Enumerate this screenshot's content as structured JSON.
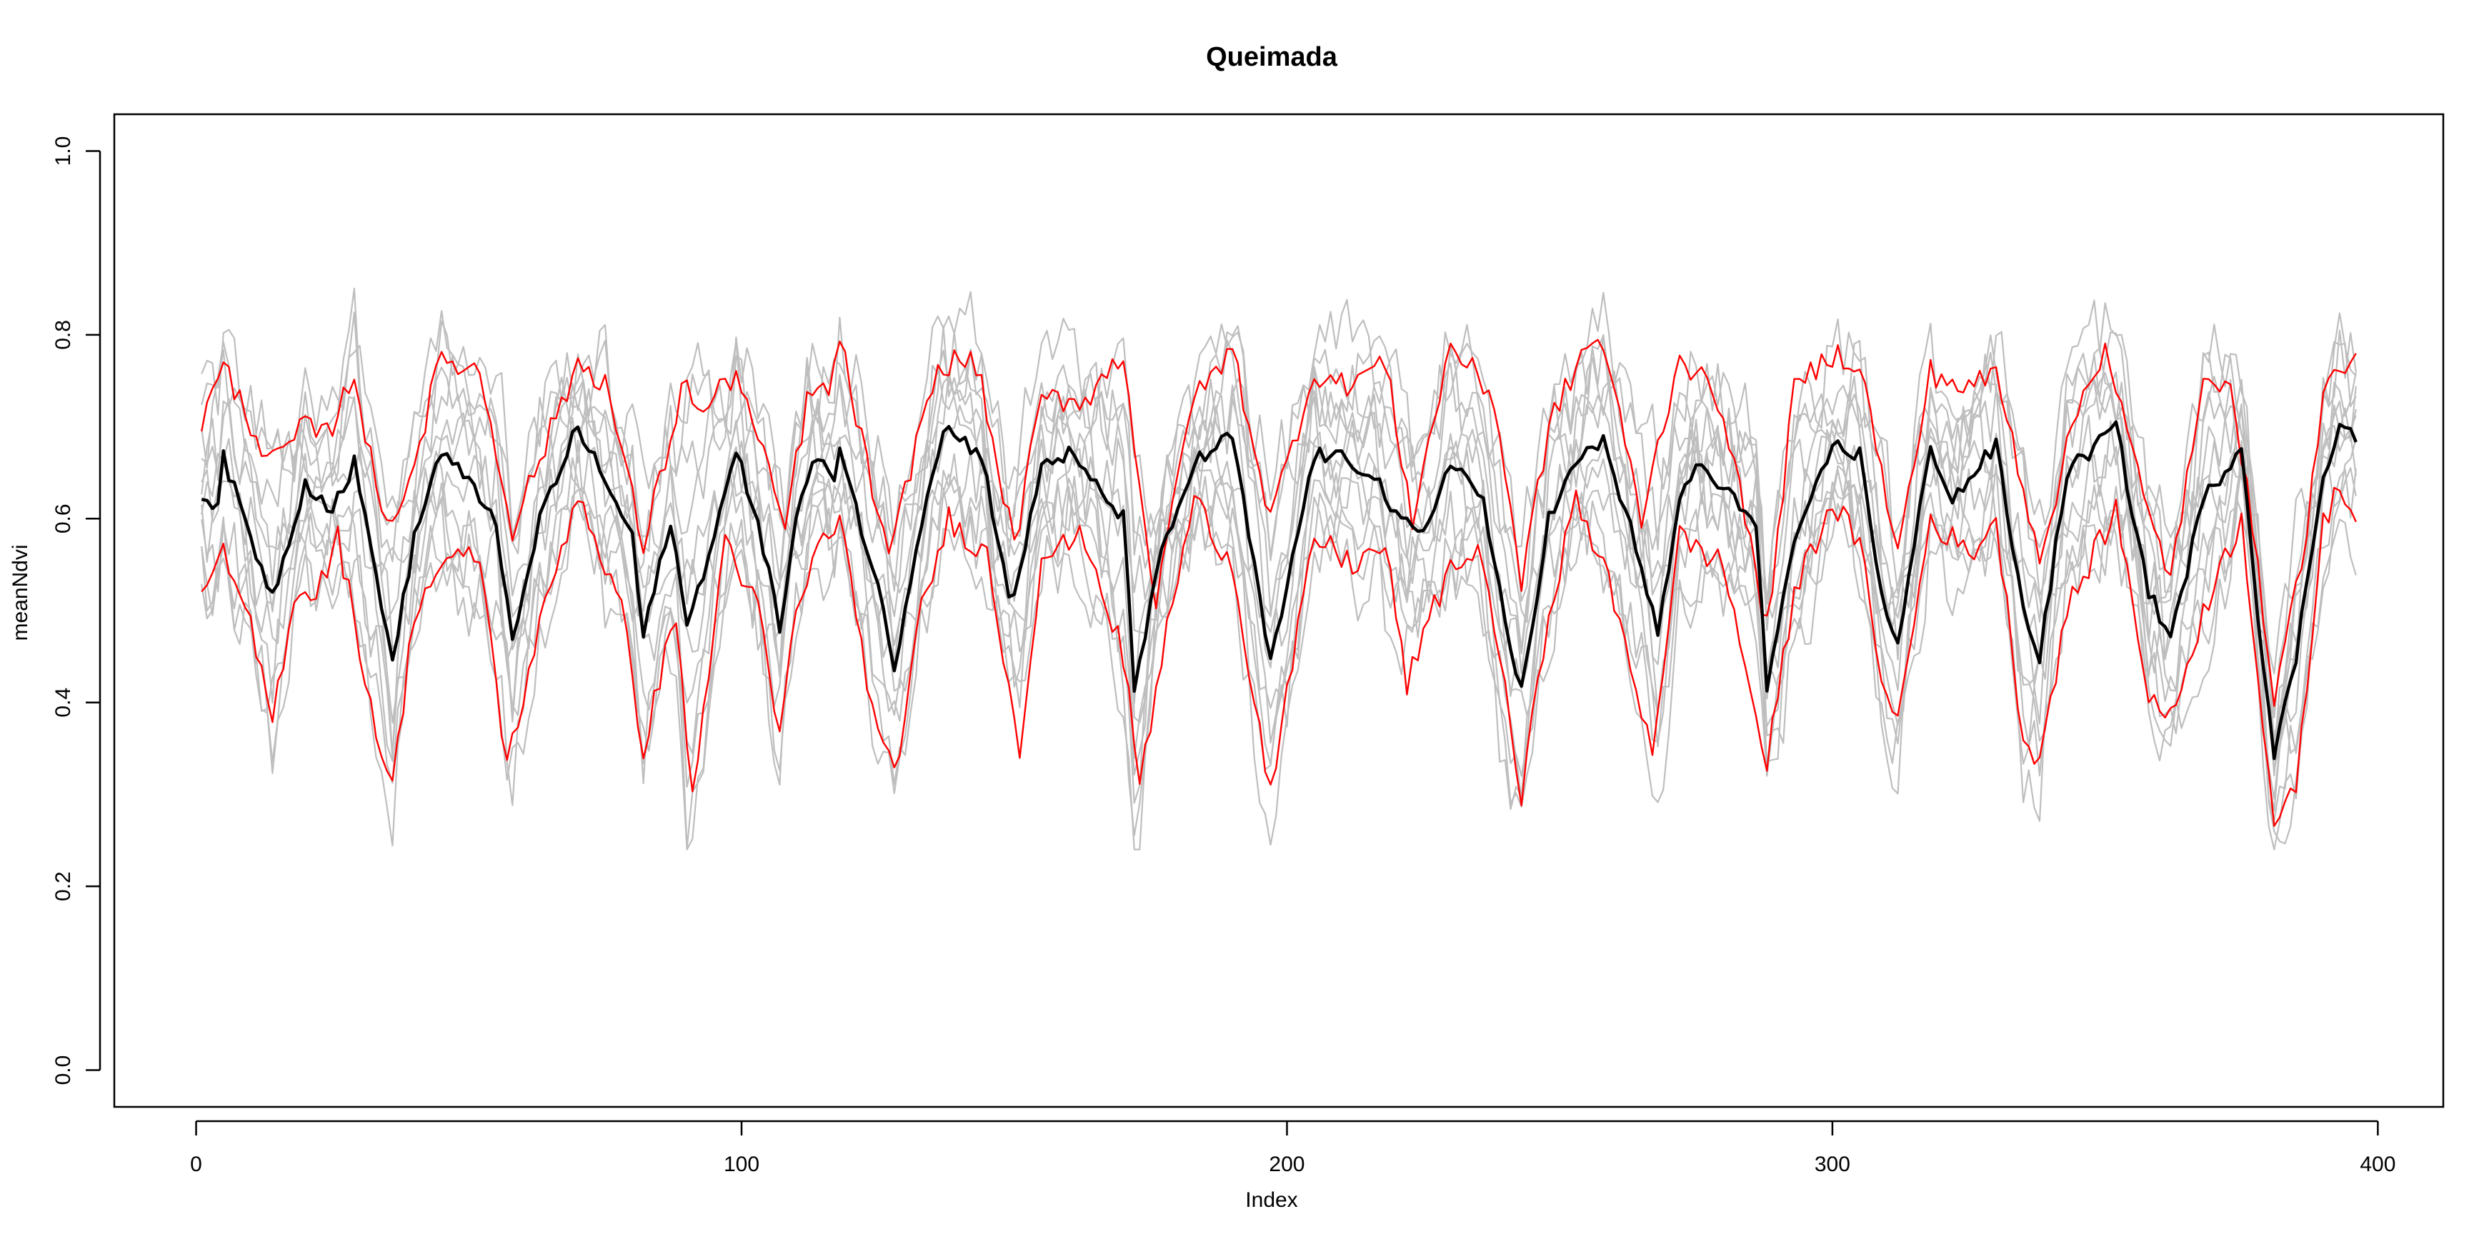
{
  "chart_data": {
    "type": "line",
    "title": "Queimada",
    "xlabel": "Index",
    "ylabel": "meanNdvi",
    "xlim": [
      -15,
      412
    ],
    "ylim": [
      -0.04,
      1.04
    ],
    "x_ticks": [
      0,
      100,
      200,
      300,
      400
    ],
    "x_tick_labels": [
      "0",
      "100",
      "200",
      "300",
      "400"
    ],
    "y_ticks": [
      0.0,
      0.2,
      0.4,
      0.6,
      0.8,
      1.0
    ],
    "y_tick_labels": [
      "0.0",
      "0.2",
      "0.4",
      "0.6",
      "0.8",
      "1.0"
    ],
    "grid": false,
    "legend": "none",
    "n_points": 396,
    "colors": {
      "background_series": "#bebebe",
      "bound_series": "#ff0000",
      "mean_series": "#000000"
    },
    "mean_keypoints": [
      [
        1,
        0.62
      ],
      [
        4,
        0.62
      ],
      [
        5,
        0.665
      ],
      [
        10,
        0.58
      ],
      [
        14,
        0.515
      ],
      [
        20,
        0.64
      ],
      [
        25,
        0.61
      ],
      [
        29,
        0.66
      ],
      [
        35,
        0.48
      ],
      [
        36,
        0.44
      ],
      [
        40,
        0.58
      ],
      [
        45,
        0.675
      ],
      [
        55,
        0.6
      ],
      [
        58,
        0.46
      ],
      [
        63,
        0.6
      ],
      [
        70,
        0.7
      ],
      [
        80,
        0.58
      ],
      [
        82,
        0.47
      ],
      [
        87,
        0.6
      ],
      [
        90,
        0.48
      ],
      [
        99,
        0.67
      ],
      [
        103,
        0.6
      ],
      [
        107,
        0.48
      ],
      [
        110,
        0.6
      ],
      [
        113,
        0.66
      ],
      [
        117,
        0.65
      ],
      [
        118,
        0.68
      ],
      [
        126,
        0.5
      ],
      [
        128,
        0.44
      ],
      [
        133,
        0.6
      ],
      [
        137,
        0.7
      ],
      [
        144,
        0.67
      ],
      [
        149,
        0.52
      ],
      [
        150,
        0.51
      ],
      [
        155,
        0.66
      ],
      [
        160,
        0.67
      ],
      [
        170,
        0.6
      ],
      [
        172,
        0.42
      ],
      [
        177,
        0.56
      ],
      [
        183,
        0.66
      ],
      [
        190,
        0.69
      ],
      [
        197,
        0.44
      ],
      [
        205,
        0.67
      ],
      [
        210,
        0.665
      ],
      [
        216,
        0.65
      ],
      [
        220,
        0.6
      ],
      [
        225,
        0.58
      ],
      [
        230,
        0.665
      ],
      [
        236,
        0.62
      ],
      [
        241,
        0.45
      ],
      [
        243,
        0.415
      ],
      [
        248,
        0.6
      ],
      [
        253,
        0.66
      ],
      [
        258,
        0.685
      ],
      [
        265,
        0.55
      ],
      [
        268,
        0.47
      ],
      [
        272,
        0.62
      ],
      [
        275,
        0.66
      ],
      [
        280,
        0.63
      ],
      [
        286,
        0.6
      ],
      [
        288,
        0.41
      ],
      [
        292,
        0.55
      ],
      [
        300,
        0.68
      ],
      [
        305,
        0.67
      ],
      [
        309,
        0.52
      ],
      [
        312,
        0.46
      ],
      [
        318,
        0.68
      ],
      [
        322,
        0.62
      ],
      [
        330,
        0.68
      ],
      [
        335,
        0.5
      ],
      [
        338,
        0.45
      ],
      [
        343,
        0.65
      ],
      [
        352,
        0.7
      ],
      [
        358,
        0.52
      ],
      [
        362,
        0.47
      ],
      [
        368,
        0.62
      ],
      [
        375,
        0.68
      ],
      [
        378,
        0.5
      ],
      [
        381,
        0.34
      ],
      [
        385,
        0.45
      ],
      [
        390,
        0.65
      ],
      [
        393,
        0.7
      ],
      [
        396,
        0.69
      ]
    ],
    "upper_bound_keypoints": [
      [
        1,
        0.705
      ],
      [
        5,
        0.765
      ],
      [
        8,
        0.73
      ],
      [
        12,
        0.68
      ],
      [
        14,
        0.66
      ],
      [
        20,
        0.7
      ],
      [
        24,
        0.69
      ],
      [
        29,
        0.76
      ],
      [
        34,
        0.6
      ],
      [
        38,
        0.62
      ],
      [
        45,
        0.775
      ],
      [
        52,
        0.76
      ],
      [
        58,
        0.59
      ],
      [
        62,
        0.65
      ],
      [
        70,
        0.77
      ],
      [
        75,
        0.75
      ],
      [
        82,
        0.57
      ],
      [
        90,
        0.76
      ],
      [
        92,
        0.71
      ],
      [
        99,
        0.76
      ],
      [
        108,
        0.59
      ],
      [
        112,
        0.73
      ],
      [
        116,
        0.74
      ],
      [
        118,
        0.795
      ],
      [
        127,
        0.55
      ],
      [
        133,
        0.71
      ],
      [
        137,
        0.77
      ],
      [
        143,
        0.77
      ],
      [
        150,
        0.57
      ],
      [
        155,
        0.73
      ],
      [
        163,
        0.73
      ],
      [
        170,
        0.78
      ],
      [
        176,
        0.5
      ],
      [
        182,
        0.72
      ],
      [
        190,
        0.785
      ],
      [
        197,
        0.6
      ],
      [
        205,
        0.76
      ],
      [
        210,
        0.745
      ],
      [
        218,
        0.77
      ],
      [
        223,
        0.6
      ],
      [
        230,
        0.79
      ],
      [
        238,
        0.73
      ],
      [
        243,
        0.53
      ],
      [
        248,
        0.7
      ],
      [
        255,
        0.79
      ],
      [
        258,
        0.79
      ],
      [
        265,
        0.6
      ],
      [
        272,
        0.78
      ],
      [
        280,
        0.72
      ],
      [
        288,
        0.48
      ],
      [
        293,
        0.74
      ],
      [
        300,
        0.78
      ],
      [
        305,
        0.77
      ],
      [
        312,
        0.56
      ],
      [
        318,
        0.76
      ],
      [
        325,
        0.74
      ],
      [
        330,
        0.76
      ],
      [
        338,
        0.56
      ],
      [
        345,
        0.72
      ],
      [
        350,
        0.79
      ],
      [
        358,
        0.6
      ],
      [
        362,
        0.54
      ],
      [
        368,
        0.74
      ],
      [
        373,
        0.76
      ],
      [
        381,
        0.41
      ],
      [
        386,
        0.55
      ],
      [
        390,
        0.73
      ],
      [
        393,
        0.77
      ],
      [
        396,
        0.765
      ]
    ],
    "lower_bound_keypoints": [
      [
        1,
        0.535
      ],
      [
        3,
        0.53
      ],
      [
        5,
        0.56
      ],
      [
        10,
        0.48
      ],
      [
        14,
        0.38
      ],
      [
        18,
        0.52
      ],
      [
        22,
        0.52
      ],
      [
        26,
        0.58
      ],
      [
        33,
        0.37
      ],
      [
        36,
        0.305
      ],
      [
        40,
        0.5
      ],
      [
        45,
        0.55
      ],
      [
        52,
        0.56
      ],
      [
        57,
        0.33
      ],
      [
        62,
        0.46
      ],
      [
        70,
        0.63
      ],
      [
        78,
        0.5
      ],
      [
        82,
        0.35
      ],
      [
        88,
        0.5
      ],
      [
        91,
        0.29
      ],
      [
        97,
        0.58
      ],
      [
        103,
        0.5
      ],
      [
        107,
        0.36
      ],
      [
        110,
        0.5
      ],
      [
        115,
        0.58
      ],
      [
        118,
        0.6
      ],
      [
        125,
        0.36
      ],
      [
        128,
        0.32
      ],
      [
        133,
        0.5
      ],
      [
        138,
        0.6
      ],
      [
        145,
        0.56
      ],
      [
        151,
        0.35
      ],
      [
        155,
        0.56
      ],
      [
        163,
        0.58
      ],
      [
        170,
        0.45
      ],
      [
        173,
        0.31
      ],
      [
        178,
        0.48
      ],
      [
        183,
        0.62
      ],
      [
        190,
        0.55
      ],
      [
        197,
        0.3
      ],
      [
        205,
        0.58
      ],
      [
        212,
        0.55
      ],
      [
        218,
        0.57
      ],
      [
        222,
        0.42
      ],
      [
        225,
        0.47
      ],
      [
        230,
        0.55
      ],
      [
        236,
        0.56
      ],
      [
        243,
        0.295
      ],
      [
        248,
        0.5
      ],
      [
        253,
        0.62
      ],
      [
        258,
        0.55
      ],
      [
        267,
        0.35
      ],
      [
        272,
        0.58
      ],
      [
        280,
        0.55
      ],
      [
        288,
        0.33
      ],
      [
        293,
        0.52
      ],
      [
        300,
        0.62
      ],
      [
        305,
        0.57
      ],
      [
        310,
        0.4
      ],
      [
        312,
        0.38
      ],
      [
        318,
        0.6
      ],
      [
        325,
        0.56
      ],
      [
        330,
        0.6
      ],
      [
        335,
        0.36
      ],
      [
        338,
        0.34
      ],
      [
        343,
        0.5
      ],
      [
        352,
        0.61
      ],
      [
        358,
        0.41
      ],
      [
        362,
        0.38
      ],
      [
        368,
        0.5
      ],
      [
        375,
        0.6
      ],
      [
        381,
        0.27
      ],
      [
        385,
        0.3
      ],
      [
        390,
        0.6
      ],
      [
        393,
        0.63
      ],
      [
        396,
        0.61
      ]
    ],
    "background_series_count": 12,
    "background_range_at_peaks": [
      0.55,
      0.89
    ],
    "background_range_at_troughs": [
      0.24,
      0.5
    ]
  }
}
